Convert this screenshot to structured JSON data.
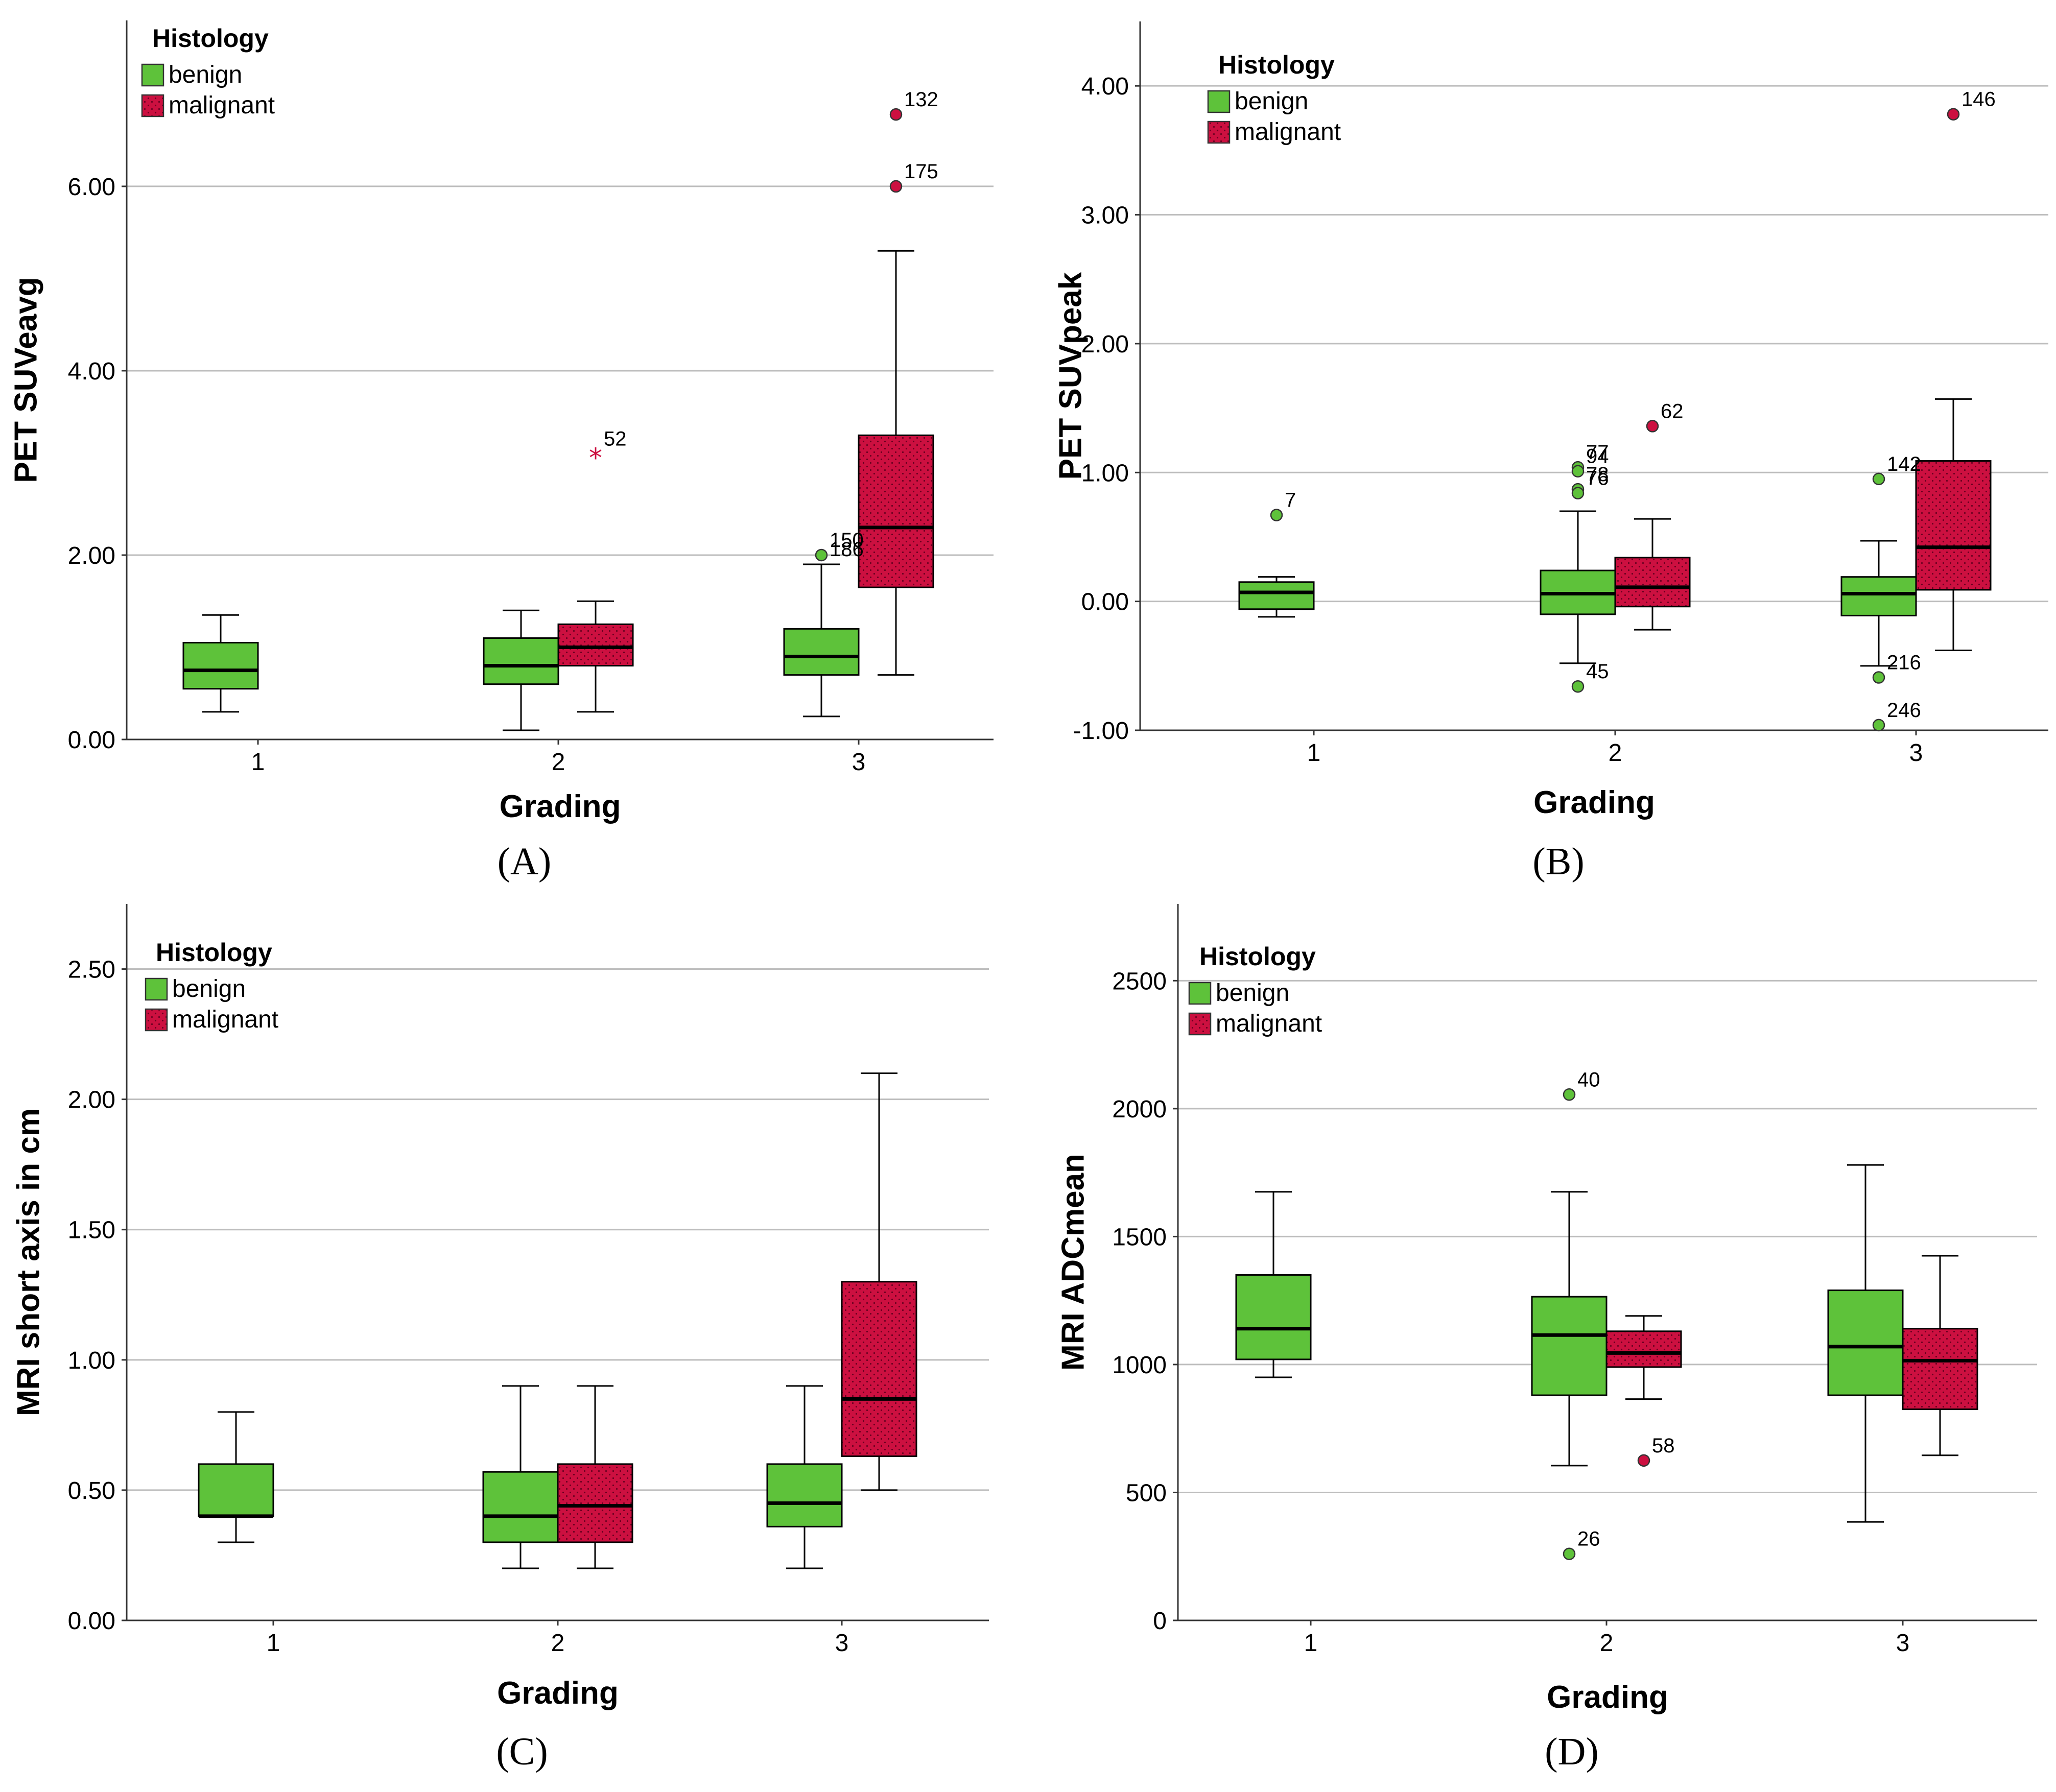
{
  "colors": {
    "benign": "#5ec23a",
    "malignant": "#cc1040",
    "grid": "#bdbdbd",
    "axis": "#333333"
  },
  "chart_data": [
    {
      "type": "boxplot",
      "panel_label": "(A)",
      "ylabel": "PET SUVeavg",
      "xlabel": "Grading",
      "ylim": [
        0,
        7.8
      ],
      "yticks": [
        0,
        2,
        4,
        6
      ],
      "ytick_labels": [
        "0.00",
        "2.00",
        "4.00",
        "6.00"
      ],
      "categories": [
        "1",
        "2",
        "3"
      ],
      "legend": {
        "title": "Histology",
        "entries": [
          "benign",
          "malignant"
        ]
      },
      "boxes": [
        {
          "category": "1",
          "group": "benign",
          "min": 0.3,
          "q1": 0.55,
          "median": 0.75,
          "q3": 1.05,
          "max": 1.35
        },
        {
          "category": "2",
          "group": "benign",
          "min": 0.1,
          "q1": 0.6,
          "median": 0.8,
          "q3": 1.1,
          "max": 1.4
        },
        {
          "category": "2",
          "group": "malignant",
          "min": 0.3,
          "q1": 0.8,
          "median": 1.0,
          "q3": 1.25,
          "max": 1.5
        },
        {
          "category": "3",
          "group": "benign",
          "min": 0.25,
          "q1": 0.7,
          "median": 0.9,
          "q3": 1.2,
          "max": 1.9
        },
        {
          "category": "3",
          "group": "malignant",
          "min": 0.7,
          "q1": 1.65,
          "median": 2.3,
          "q3": 3.3,
          "max": 5.3
        }
      ],
      "outliers": [
        {
          "category": "2",
          "group": "malignant",
          "value": 3.1,
          "label": "52",
          "marker": "star"
        },
        {
          "category": "3",
          "group": "benign",
          "value": 2.0,
          "label": "150",
          "marker": "circle"
        },
        {
          "category": "3",
          "group": "benign",
          "value": 1.9,
          "label": "186",
          "marker": "none"
        },
        {
          "category": "3",
          "group": "malignant",
          "value": 6.78,
          "label": "132",
          "marker": "circle"
        },
        {
          "category": "3",
          "group": "malignant",
          "value": 6.0,
          "label": "175",
          "marker": "circle"
        }
      ]
    },
    {
      "type": "boxplot",
      "panel_label": "(B)",
      "ylabel": "PET SUVpeak",
      "xlabel": "Grading",
      "ylim": [
        -1,
        4.5
      ],
      "yticks": [
        -1,
        0,
        1,
        2,
        3,
        4
      ],
      "ytick_labels": [
        "-1.00",
        "0.00",
        "1.00",
        "2.00",
        "3.00",
        "4.00"
      ],
      "categories": [
        "1",
        "2",
        "3"
      ],
      "legend": {
        "title": "Histology",
        "entries": [
          "benign",
          "malignant"
        ]
      },
      "boxes": [
        {
          "category": "1",
          "group": "benign",
          "min": -0.12,
          "q1": -0.06,
          "median": 0.07,
          "q3": 0.15,
          "max": 0.19
        },
        {
          "category": "2",
          "group": "benign",
          "min": -0.48,
          "q1": -0.1,
          "median": 0.06,
          "q3": 0.24,
          "max": 0.7
        },
        {
          "category": "2",
          "group": "malignant",
          "min": -0.22,
          "q1": -0.04,
          "median": 0.11,
          "q3": 0.34,
          "max": 0.64
        },
        {
          "category": "3",
          "group": "benign",
          "min": -0.5,
          "q1": -0.11,
          "median": 0.06,
          "q3": 0.19,
          "max": 0.47
        },
        {
          "category": "3",
          "group": "malignant",
          "min": -0.38,
          "q1": 0.09,
          "median": 0.42,
          "q3": 1.09,
          "max": 1.57
        }
      ],
      "outliers": [
        {
          "category": "1",
          "group": "benign",
          "value": 0.67,
          "label": "7",
          "marker": "circle"
        },
        {
          "category": "2",
          "group": "benign",
          "value": 1.04,
          "label": "77",
          "marker": "circle"
        },
        {
          "category": "2",
          "group": "benign",
          "value": 1.01,
          "label": "94",
          "marker": "circle"
        },
        {
          "category": "2",
          "group": "benign",
          "value": 0.87,
          "label": "78",
          "marker": "circle"
        },
        {
          "category": "2",
          "group": "benign",
          "value": 0.84,
          "label": "76",
          "marker": "circle"
        },
        {
          "category": "2",
          "group": "benign",
          "value": -0.66,
          "label": "45",
          "marker": "circle"
        },
        {
          "category": "2",
          "group": "malignant",
          "value": 1.36,
          "label": "62",
          "marker": "circle"
        },
        {
          "category": "3",
          "group": "benign",
          "value": 0.95,
          "label": "142",
          "marker": "circle"
        },
        {
          "category": "3",
          "group": "benign",
          "value": -0.59,
          "label": "216",
          "marker": "circle"
        },
        {
          "category": "3",
          "group": "benign",
          "value": -0.96,
          "label": "246",
          "marker": "circle"
        },
        {
          "category": "3",
          "group": "malignant",
          "value": 3.78,
          "label": "146",
          "marker": "circle"
        }
      ]
    },
    {
      "type": "boxplot",
      "panel_label": "(C)",
      "ylabel": "MRI short axis in cm",
      "xlabel": "Grading",
      "ylim": [
        0,
        2.75
      ],
      "yticks": [
        0,
        0.5,
        1,
        1.5,
        2,
        2.5
      ],
      "ytick_labels": [
        "0.00",
        "0.50",
        "1.00",
        "1.50",
        "2.00",
        "2.50"
      ],
      "categories": [
        "1",
        "2",
        "3"
      ],
      "legend": {
        "title": "Histology",
        "entries": [
          "benign",
          "malignant"
        ]
      },
      "boxes": [
        {
          "category": "1",
          "group": "benign",
          "min": 0.3,
          "q1": 0.4,
          "median": 0.4,
          "q3": 0.6,
          "max": 0.8
        },
        {
          "category": "2",
          "group": "benign",
          "min": 0.2,
          "q1": 0.3,
          "median": 0.4,
          "q3": 0.57,
          "max": 0.9
        },
        {
          "category": "2",
          "group": "malignant",
          "min": 0.2,
          "q1": 0.3,
          "median": 0.44,
          "q3": 0.6,
          "max": 0.9
        },
        {
          "category": "3",
          "group": "benign",
          "min": 0.2,
          "q1": 0.36,
          "median": 0.45,
          "q3": 0.6,
          "max": 0.9
        },
        {
          "category": "3",
          "group": "malignant",
          "min": 0.5,
          "q1": 0.63,
          "median": 0.85,
          "q3": 1.3,
          "max": 2.1
        }
      ],
      "outliers": []
    },
    {
      "type": "boxplot",
      "panel_label": "(D)",
      "ylabel": "MRI ADCmean",
      "xlabel": "Grading",
      "ylim": [
        0,
        2800
      ],
      "yticks": [
        0,
        500,
        1000,
        1500,
        2000,
        2500
      ],
      "ytick_labels": [
        "0",
        "500",
        "1000",
        "1500",
        "2000",
        "2500"
      ],
      "categories": [
        "1",
        "2",
        "3"
      ],
      "legend": {
        "title": "Histology",
        "entries": [
          "benign",
          "malignant"
        ]
      },
      "boxes": [
        {
          "category": "1",
          "group": "benign",
          "min": 950,
          "q1": 1020,
          "median": 1140,
          "q3": 1350,
          "max": 1675
        },
        {
          "category": "2",
          "group": "benign",
          "min": 605,
          "q1": 880,
          "median": 1115,
          "q3": 1265,
          "max": 1675
        },
        {
          "category": "2",
          "group": "malignant",
          "min": 865,
          "q1": 990,
          "median": 1045,
          "q3": 1130,
          "max": 1190
        },
        {
          "category": "3",
          "group": "benign",
          "min": 385,
          "q1": 880,
          "median": 1070,
          "q3": 1290,
          "max": 1780
        },
        {
          "category": "3",
          "group": "malignant",
          "min": 645,
          "q1": 825,
          "median": 1015,
          "q3": 1140,
          "max": 1425
        }
      ],
      "outliers": [
        {
          "category": "2",
          "group": "benign",
          "value": 2055,
          "label": "40",
          "marker": "circle"
        },
        {
          "category": "2",
          "group": "benign",
          "value": 260,
          "label": "26",
          "marker": "circle"
        },
        {
          "category": "2",
          "group": "malignant",
          "value": 625,
          "label": "58",
          "marker": "circle"
        }
      ]
    }
  ]
}
